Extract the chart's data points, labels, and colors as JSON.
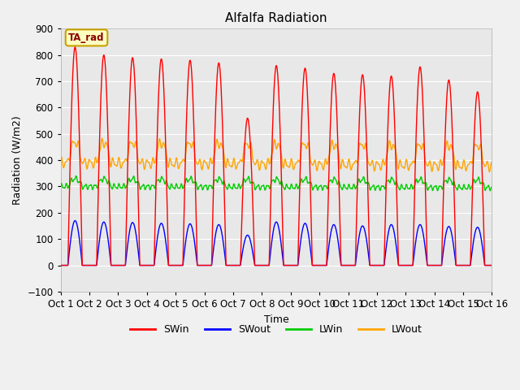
{
  "title": "Alfalfa Radiation",
  "xlabel": "Time",
  "ylabel": "Radiation (W/m2)",
  "ylim": [
    -100,
    900
  ],
  "xlim": [
    0,
    15
  ],
  "figure_bg": "#f0f0f0",
  "plot_bg": "#e8e8e8",
  "grid_color": "#ffffff",
  "annotation_text": "TA_rad",
  "annotation_bg": "#ffffc0",
  "annotation_border": "#c8a000",
  "annotation_text_color": "#8b0000",
  "xtick_labels": [
    "Oct 1",
    "Oct 2",
    "Oct 3",
    "Oct 4",
    "Oct 5",
    "Oct 6",
    "Oct 7",
    "Oct 8",
    "Oct 9",
    "Oct 10",
    "Oct 11",
    "Oct 12",
    "Oct 13",
    "Oct 14",
    "Oct 15",
    "Oct 16"
  ],
  "series_colors": {
    "SWin": "#ff0000",
    "SWout": "#0000ff",
    "LWin": "#00cc00",
    "LWout": "#ffa500"
  },
  "SWin_peaks": [
    830,
    800,
    790,
    785,
    780,
    770,
    560,
    760,
    750,
    730,
    725,
    720,
    755,
    705,
    660
  ],
  "SWout_peaks": [
    170,
    165,
    163,
    160,
    158,
    155,
    115,
    165,
    160,
    155,
    150,
    155,
    155,
    148,
    145
  ],
  "day_count": 15,
  "points_per_day": 200
}
